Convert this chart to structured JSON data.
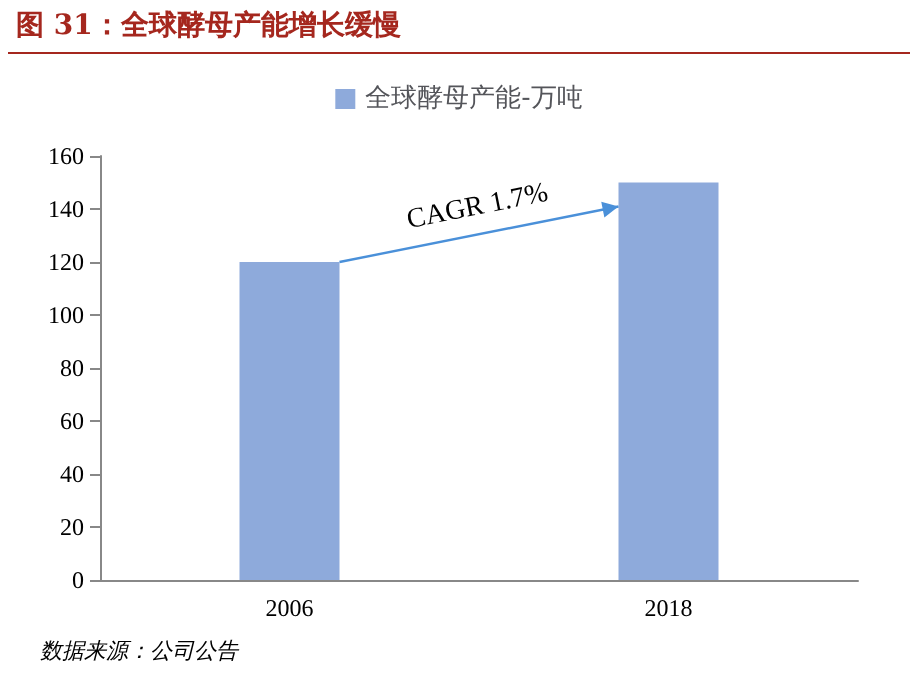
{
  "chart_data": {
    "type": "bar",
    "title": "图 31：全球酵母产能增长缓慢",
    "categories": [
      "2006",
      "2018"
    ],
    "series": [
      {
        "name": "全球酵母产能-万吨",
        "color": "#8eaadb",
        "values": [
          120,
          150
        ]
      }
    ],
    "ylim": [
      0,
      160
    ],
    "yticks": [
      0,
      20,
      40,
      60,
      80,
      100,
      120,
      140,
      160
    ],
    "grid": false,
    "legend": "top",
    "annotations": [
      "CAGR 1.7%",
      "数据来源：公司公告"
    ]
  }
}
